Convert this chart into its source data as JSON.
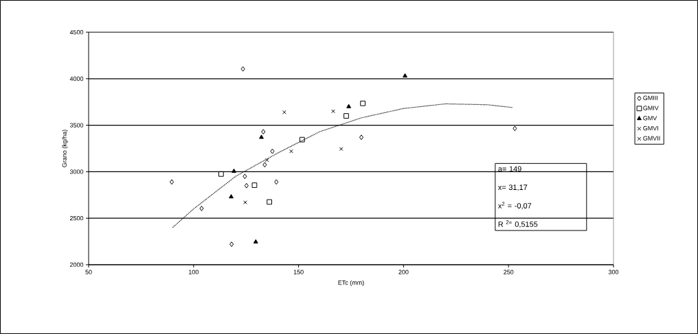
{
  "chart_data": {
    "type": "scatter",
    "xlabel": "ETc (mm)",
    "ylabel": "Grano (kg/ha)",
    "xlim": [
      50,
      300
    ],
    "ylim": [
      2000,
      4500
    ],
    "xticks": [
      50,
      100,
      150,
      200,
      250,
      300
    ],
    "yticks": [
      2000,
      2500,
      3000,
      3500,
      4000,
      4500
    ],
    "grid": "y",
    "legend": "right",
    "annotations": [
      "a= 149",
      "x= 31,17",
      "x$^{2}$ = -0,07",
      "R $^{2=}$ 0,5155"
    ],
    "series": [
      {
        "name": "GMIII",
        "color": "#000000",
        "marker": "diamond",
        "x": [
          123.5,
          179.9,
          125.2,
          139.4,
          118.1,
          133.9,
          124.4,
          89.6,
          103.8,
          137.5,
          253,
          133.2
        ],
        "values": [
          4105,
          3370,
          2850,
          2890,
          2220,
          3075,
          2950,
          2890,
          2605,
          3220,
          3465,
          3430
        ]
      },
      {
        "name": "GMIV",
        "color": "#000000",
        "marker": "square",
        "x": [
          113.1,
          129,
          136.1,
          151.7,
          172.7,
          180.6
        ],
        "values": [
          2975,
          2855,
          2675,
          3345,
          3600,
          3735
        ]
      },
      {
        "name": "GMV",
        "color": "#000000",
        "marker": "triangle",
        "x": [
          173.9,
          119.2,
          117.9,
          132.3,
          200.7,
          129.6
        ],
        "values": [
          3700,
          3005,
          2730,
          3370,
          4030,
          2245
        ]
      },
      {
        "name": "GMVI",
        "color": "#000000",
        "marker": "cross",
        "x": [
          143.2,
          170.3,
          124.6
        ],
        "values": [
          3640,
          3245,
          2670
        ]
      },
      {
        "name": "GMVII",
        "color": "#000000",
        "marker": "cross",
        "x": [
          166.5,
          146.5,
          135
        ],
        "values": [
          3650,
          3220,
          3125
        ]
      },
      {
        "type": "line",
        "color": "#000000",
        "marker": "none",
        "line_style": "dotted",
        "x": [
          90,
          100,
          120,
          140,
          160,
          180,
          200,
          220,
          240,
          252
        ],
        "values": [
          2400,
          2600,
          2950,
          3200,
          3430,
          3580,
          3680,
          3730,
          3720,
          3690
        ]
      }
    ]
  }
}
